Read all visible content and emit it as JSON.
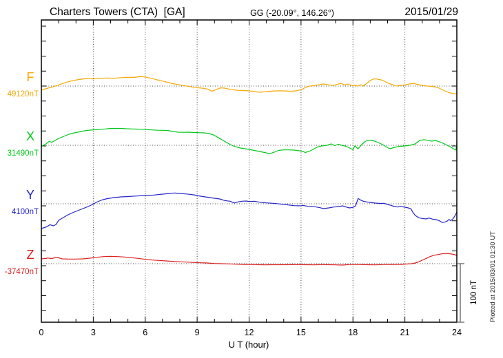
{
  "header": {
    "station_title": "Charters Towers (CTA)  [GA]",
    "coordinates": "GG (-20.09°, 146.26°)",
    "date": "2015/01/29"
  },
  "axes": {
    "x_label": "U T (hour)",
    "x_ticks": [
      0,
      3,
      6,
      9,
      12,
      15,
      18,
      21,
      24
    ],
    "x_range_hours": [
      0,
      24
    ]
  },
  "scale_bar": {
    "label": "100 nT",
    "span_nT": 100
  },
  "footer": {
    "plotted_at": "Plotted at 2015/03/01 01:30 UT"
  },
  "chart_data": {
    "type": "line",
    "title": "Charters Towers (CTA)  [GA]",
    "subtitle": "GG (-20.09°, 146.26°)",
    "date": "2015/01/29",
    "xlabel": "U T (hour)",
    "x_unit": "hour (UT)",
    "y_unit": "nT",
    "xlim": [
      0,
      24
    ],
    "grid": "dotted vertical every 3 h; dotted horizontal at each component baseline",
    "note": "offsets_nT are deviations from each component's labeled baseline value; absolute value = baseline_nT + offset",
    "series": [
      {
        "component": "F",
        "baseline_label": "49120nT",
        "baseline_nT": 49120,
        "color": "#f5a800",
        "x": [
          0,
          0.3,
          0.6,
          1,
          1.4,
          1.8,
          2.2,
          2.6,
          3,
          3.4,
          3.8,
          4.2,
          4.6,
          5,
          5.4,
          5.7,
          5.9,
          6.1,
          6.4,
          6.8,
          7.2,
          7.6,
          8,
          8.4,
          8.8,
          9.1,
          9.3,
          9.6,
          9.85,
          10.1,
          10.35,
          10.6,
          10.9,
          11.3,
          11.7,
          12,
          12.3,
          12.6,
          12.9,
          13.2,
          13.6,
          14,
          14.4,
          14.7,
          15.05,
          15.25,
          15.5,
          15.8,
          16.1,
          16.3,
          16.6,
          16.9,
          17.1,
          17.3,
          17.5,
          17.7,
          17.9,
          18.1,
          18.3,
          18.45,
          18.6,
          18.8,
          19,
          19.2,
          19.35,
          19.5,
          19.7,
          19.9,
          20.1,
          20.3,
          20.5,
          20.8,
          21.1,
          21.35,
          21.5,
          21.7,
          22,
          22.3,
          22.6,
          22.9,
          23.1,
          23.3,
          23.5,
          23.7,
          23.9,
          24
        ],
        "offsets_nT": [
          -7,
          -4,
          -2,
          2,
          6,
          9,
          11,
          12.5,
          12,
          13,
          13.5,
          13,
          14,
          14.5,
          14.5,
          16,
          15.5,
          14.5,
          12.5,
          9.5,
          7,
          4,
          2,
          0,
          -2,
          -3,
          -3.5,
          -5,
          -8.5,
          -6,
          -3,
          -3.5,
          -5.5,
          -7,
          -7.5,
          -8,
          -9,
          -10.3,
          -9.7,
          -8.6,
          -8,
          -8,
          -8.6,
          -8,
          -5.7,
          -2.3,
          0,
          1,
          2.5,
          3.5,
          2,
          1,
          3,
          4.5,
          2,
          3.5,
          1,
          1.1,
          0,
          2.3,
          0,
          4.6,
          9.2,
          11.8,
          12,
          10.9,
          9.8,
          6.9,
          4,
          2.3,
          0,
          1.1,
          2.3,
          4,
          4.6,
          2.9,
          1.1,
          0,
          -0.6,
          -2.3,
          -5.2,
          -8,
          -10.3,
          -12,
          -13.2,
          -11.5
        ]
      },
      {
        "component": "X",
        "baseline_label": "31490nT",
        "baseline_nT": 31490,
        "color": "#00c819",
        "x": [
          0,
          0.25,
          0.45,
          0.6,
          0.8,
          1,
          1.3,
          1.6,
          1.9,
          2.2,
          2.5,
          2.8,
          3.1,
          3.4,
          3.7,
          4,
          4.3,
          4.6,
          4.9,
          5.2,
          5.5,
          5.8,
          6.1,
          6.4,
          6.7,
          7,
          7.3,
          7.6,
          7.9,
          8.2,
          8.5,
          8.8,
          9.1,
          9.4,
          9.7,
          9.95,
          10.2,
          10.5,
          10.8,
          11,
          11.2,
          11.5,
          11.75,
          12,
          12.3,
          12.7,
          13,
          13.1,
          13.3,
          13.45,
          13.7,
          14,
          14.3,
          14.6,
          14.9,
          15.1,
          15.25,
          15.45,
          15.7,
          15.95,
          16.2,
          16.5,
          16.75,
          16.95,
          17.15,
          17.35,
          17.6,
          17.85,
          18,
          18.1,
          18.3,
          18.5,
          18.7,
          18.85,
          19.05,
          19.25,
          19.5,
          19.75,
          20,
          20.15,
          20.4,
          20.7,
          21,
          21.3,
          21.6,
          21.85,
          22.1,
          22.35,
          22.55,
          22.75,
          23,
          23.2,
          23.4,
          23.6,
          23.8,
          23.95,
          24
        ],
        "offsets_nT": [
          -2,
          2,
          6.5,
          5,
          8,
          11.5,
          14.9,
          18.4,
          20.7,
          22.4,
          24.1,
          25.3,
          25.9,
          26.7,
          27.2,
          28.2,
          28.2,
          28.2,
          27.6,
          27.2,
          27,
          26.7,
          26.1,
          25.6,
          25.1,
          24.9,
          24.7,
          23,
          21.8,
          21.6,
          21.8,
          21.3,
          21,
          20.7,
          19.5,
          17.2,
          13,
          8,
          3,
          0,
          -2.3,
          -4.6,
          -5.7,
          -6.9,
          -8.6,
          -10.9,
          -12.6,
          -14.4,
          -13,
          -11.5,
          -8.6,
          -7.7,
          -7.7,
          -8,
          -9.2,
          -10.3,
          -12,
          -10.3,
          -6.9,
          -2.9,
          -1.1,
          0,
          2.3,
          -0.6,
          1.7,
          0,
          -1.7,
          -5.2,
          -7.5,
          -1.1,
          -5.7,
          1.1,
          6.3,
          8,
          8.6,
          6.9,
          4,
          0.6,
          -4,
          -5.7,
          -3.4,
          -1.7,
          -1.1,
          0,
          2.3,
          8,
          9.2,
          8.3,
          6.9,
          8,
          5.7,
          3.4,
          0.6,
          -2.3,
          -5.7,
          -8,
          3.4
        ]
      },
      {
        "component": "Y",
        "baseline_label": "4100nT",
        "baseline_nT": 4100,
        "color": "#2424c8",
        "x": [
          0,
          0.3,
          0.5,
          0.7,
          0.85,
          1,
          1.2,
          1.5,
          1.8,
          2.1,
          2.4,
          2.7,
          3,
          3.2,
          3.5,
          3.8,
          4.2,
          4.6,
          5,
          5.5,
          6,
          6.5,
          7,
          7.4,
          7.7,
          8,
          8.4,
          8.8,
          9.2,
          9.6,
          10,
          10.3,
          10.6,
          10.9,
          11.15,
          11.35,
          11.6,
          11.85,
          12,
          12.3,
          12.6,
          13,
          13.4,
          13.8,
          14.2,
          14.6,
          15,
          15.1,
          15.4,
          15.8,
          16.1,
          16.3,
          16.6,
          16.9,
          17.2,
          17.4,
          17.6,
          17.8,
          18,
          18.15,
          18.3,
          18.45,
          18.6,
          18.8,
          19,
          19.3,
          19.6,
          19.8,
          20,
          20.2,
          20.4,
          20.6,
          20.75,
          21,
          21.2,
          21.35,
          21.45,
          21.6,
          21.8,
          22,
          22.2,
          22.4,
          22.6,
          22.8,
          23,
          23.15,
          23.3,
          23.45,
          23.55,
          23.65,
          23.8,
          23.9,
          24
        ],
        "offsets_nT": [
          -41.4,
          -38.5,
          -35,
          -36.8,
          -34.5,
          -27.6,
          -24.1,
          -19,
          -14.9,
          -11.5,
          -8,
          -4.6,
          -0.6,
          2.9,
          6.3,
          8.6,
          10.3,
          11.5,
          12.1,
          13,
          13.8,
          14.6,
          16.1,
          17.2,
          18,
          17.2,
          16.3,
          14.9,
          12.6,
          10.9,
          9.2,
          8,
          5.4,
          4.3,
          1.4,
          3.1,
          4.3,
          4.6,
          3.8,
          4.3,
          2.6,
          1.5,
          0.8,
          -0.3,
          -1.7,
          -3.1,
          -3.4,
          -2.6,
          -4.3,
          -4.9,
          -6.6,
          -8,
          -6.9,
          -5.4,
          -4.6,
          -3.4,
          -5.4,
          -6.9,
          -6.1,
          -3.4,
          8.9,
          6.1,
          4.3,
          3.1,
          2.3,
          1.1,
          0.6,
          0.8,
          -1.1,
          -2.6,
          -4.6,
          -5.4,
          -4.3,
          -5.7,
          -6.9,
          -8.4,
          -13.8,
          -19.5,
          -23.3,
          -24.5,
          -25.3,
          -23.8,
          -25.6,
          -26.4,
          -28.4,
          -31,
          -30.7,
          -28.7,
          -26.1,
          -28.4,
          -24.1,
          -19.5,
          -13.8
        ]
      },
      {
        "component": "Z",
        "baseline_label": "-37470nT",
        "baseline_nT": -37470,
        "color": "#dc1e1e",
        "x": [
          0,
          0.3,
          0.35,
          0.6,
          0.9,
          1.2,
          1.6,
          2,
          2.4,
          2.8,
          3.2,
          3.6,
          4,
          4.4,
          4.8,
          5.2,
          5.6,
          6,
          6.4,
          6.8,
          7.2,
          7.6,
          8,
          8.4,
          8.8,
          9.2,
          9.6,
          10,
          10.4,
          10.8,
          11.2,
          11.6,
          12,
          12.4,
          12.9,
          13.3,
          13.8,
          14.3,
          14.8,
          15.3,
          15.8,
          16.2,
          16.6,
          17,
          17.4,
          17.8,
          18.3,
          18.8,
          19.3,
          19.8,
          20.3,
          20.8,
          21.1,
          21.4,
          21.6,
          21.8,
          22,
          22.2,
          22.45,
          22.7,
          22.9,
          23.1,
          23.3,
          23.5,
          23.7,
          23.9,
          24
        ],
        "offsets_nT": [
          8,
          8.9,
          9.5,
          8.6,
          10.7,
          8,
          7.7,
          7.7,
          8,
          9.2,
          10.7,
          11.8,
          12.3,
          11.8,
          11.1,
          10,
          8.9,
          7.2,
          6.1,
          5.4,
          4.6,
          3.8,
          3.1,
          2.6,
          2,
          1.5,
          1.1,
          0.3,
          0,
          -0.3,
          -0.8,
          -1.1,
          -1.3,
          -1.5,
          -1.9,
          -1.7,
          -1.7,
          -1.7,
          -1.4,
          -1.7,
          -1.9,
          -1.4,
          -1.7,
          -1.9,
          -2.3,
          -1.4,
          -1.4,
          -1.7,
          -2,
          -1.4,
          -1.3,
          -1.1,
          -0.6,
          0,
          1.1,
          3.1,
          5.7,
          8.4,
          11.8,
          14.1,
          15.2,
          16.3,
          16.9,
          16.9,
          16.1,
          14.9,
          13
        ]
      }
    ]
  }
}
